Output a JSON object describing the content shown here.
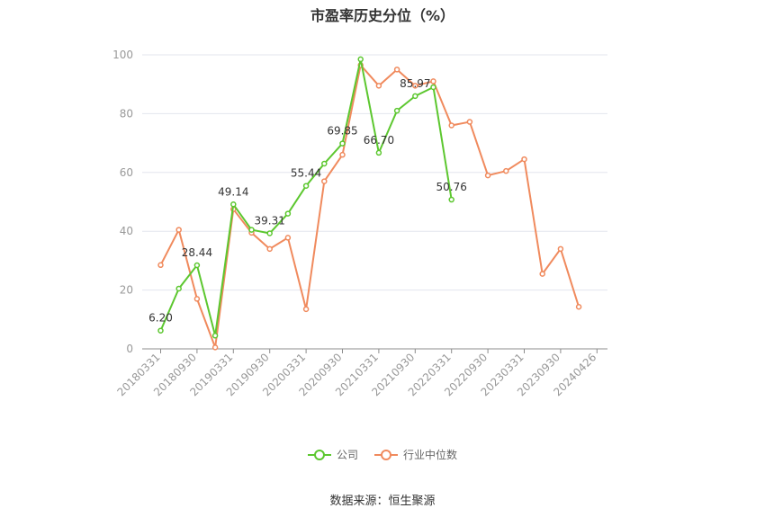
{
  "title": "市盈率历史分位（%）",
  "source": "数据来源：恒生聚源",
  "chart_data": {
    "type": "line",
    "title": "市盈率历史分位（%）",
    "ylim": [
      0,
      100
    ],
    "yticks": [
      0,
      20,
      40,
      60,
      80,
      100
    ],
    "x_tick_labels": [
      "20180331",
      "20180930",
      "20190331",
      "20190930",
      "20200331",
      "20200930",
      "20210331",
      "20210930",
      "20220331",
      "20220930",
      "20230331",
      "20230930",
      "20240426"
    ],
    "grid": true,
    "legend_position": "bottom",
    "series": [
      {
        "name": "公司",
        "color": "#5cc72f",
        "values": [
          6.2,
          20.5,
          28.44,
          4.5,
          49.14,
          40.5,
          39.31,
          46.0,
          55.44,
          63.0,
          69.85,
          98.5,
          66.7,
          81.0,
          85.97,
          89.0,
          50.76,
          null,
          null,
          null,
          null,
          null,
          null,
          null,
          null
        ],
        "labels": [
          "6.20",
          null,
          "28.44",
          null,
          "49.14",
          null,
          "39.31",
          null,
          "55.44",
          null,
          "69.85",
          null,
          "66.70",
          null,
          "85.97",
          null,
          "50.76",
          null,
          null,
          null,
          null,
          null,
          null,
          null,
          null
        ]
      },
      {
        "name": "行业中位数",
        "color": "#f08a5d",
        "values": [
          28.5,
          40.5,
          17.0,
          0.5,
          47.5,
          39.5,
          34.0,
          37.8,
          13.5,
          57.0,
          66.0,
          96.5,
          89.5,
          95.0,
          89.5,
          91.0,
          76.0,
          77.2,
          59.0,
          60.5,
          64.5,
          25.5,
          34.0,
          14.3,
          null
        ]
      }
    ]
  }
}
